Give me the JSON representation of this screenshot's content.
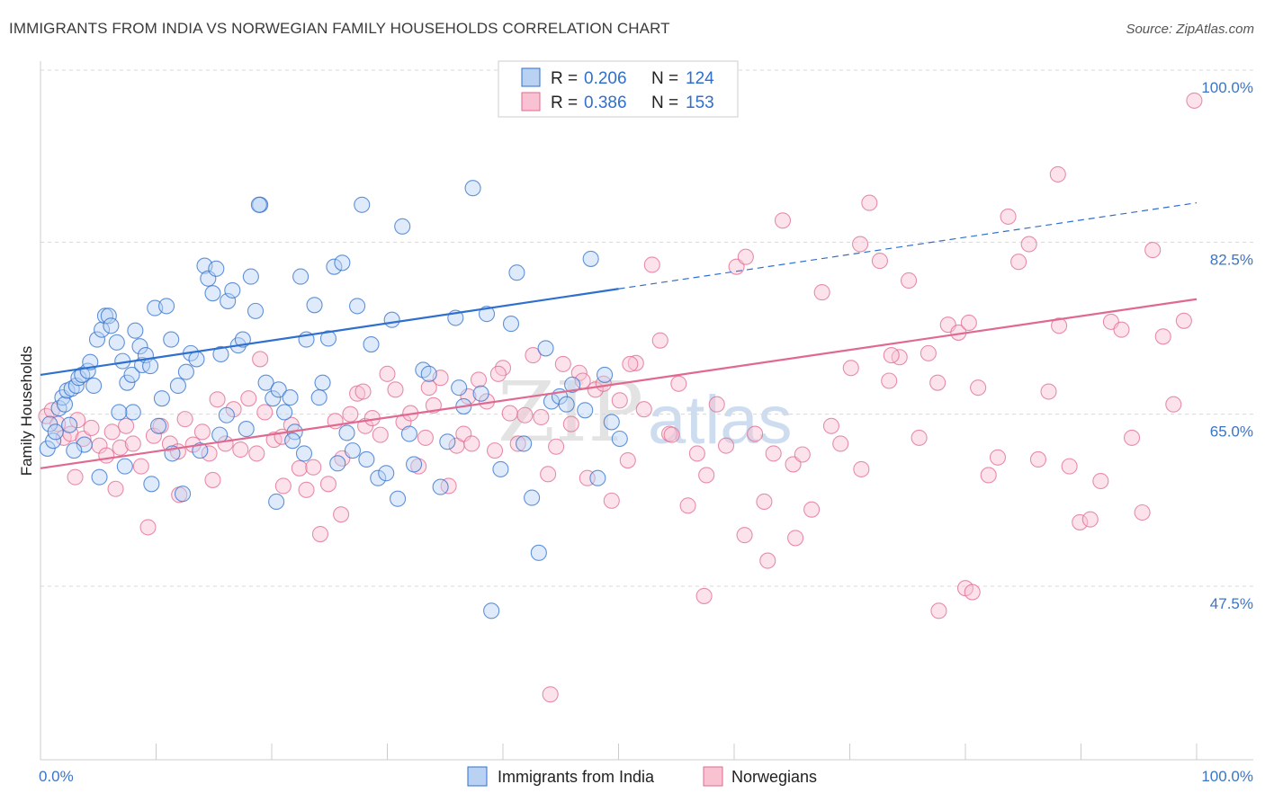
{
  "title": "IMMIGRANTS FROM INDIA VS NORWEGIAN FAMILY HOUSEHOLDS CORRELATION CHART",
  "source": "Source: ZipAtlas.com",
  "colors": {
    "blue": "#2f6fce",
    "pink": "#e0698f",
    "blue_fill": "#b9d2f4",
    "pink_fill": "#f8c2d2",
    "tick": "#3d74c4",
    "grid": "#d8d8d8"
  },
  "legend": {
    "series1": {
      "r_label": "R = ",
      "r_value": "0.206",
      "n_label": "N = ",
      "n_value": "124"
    },
    "series2": {
      "r_label": "R = ",
      "r_value": "0.386",
      "n_label": "N = ",
      "n_value": "153"
    }
  },
  "bottom_legend": {
    "series1": "Immigrants from India",
    "series2": "Norwegians"
  },
  "watermark": {
    "zip": "ZIP",
    "atlas": "atlas"
  },
  "chart_data": {
    "type": "scatter",
    "title": "IMMIGRANTS FROM INDIA VS NORWEGIAN FAMILY HOUSEHOLDS CORRELATION CHART",
    "xlabel": "",
    "ylabel": "Family Households",
    "xlim": [
      0,
      100
    ],
    "ylim": [
      31.5,
      102
    ],
    "x_tick_labels": {
      "left": "0.0%",
      "right": "100.0%"
    },
    "y_ticks": [
      {
        "value": 100.0,
        "label": "100.0%"
      },
      {
        "value": 82.5,
        "label": "82.5%"
      },
      {
        "value": 65.0,
        "label": "65.0%"
      },
      {
        "value": 47.5,
        "label": "47.5%"
      }
    ],
    "series": [
      {
        "name": "Immigrants from India",
        "color": "#2f6fce",
        "trend": {
          "x1": 0,
          "y1": 69.0,
          "x2": 100,
          "y2": 86.5,
          "solid_until": 50
        },
        "points": [
          [
            0.6,
            61.5
          ],
          [
            0.8,
            64.0
          ],
          [
            1.1,
            62.3
          ],
          [
            1.3,
            63.2
          ],
          [
            1.6,
            65.6
          ],
          [
            1.9,
            66.7
          ],
          [
            2.1,
            66.0
          ],
          [
            2.3,
            67.4
          ],
          [
            2.5,
            63.9
          ],
          [
            2.7,
            67.6
          ],
          [
            3.1,
            67.9
          ],
          [
            3.3,
            68.7
          ],
          [
            3.6,
            69.0
          ],
          [
            4.1,
            69.4
          ],
          [
            4.3,
            70.3
          ],
          [
            4.6,
            67.9
          ],
          [
            4.9,
            72.6
          ],
          [
            5.3,
            73.6
          ],
          [
            5.6,
            75.0
          ],
          [
            5.9,
            75.0
          ],
          [
            6.1,
            74.0
          ],
          [
            6.6,
            72.3
          ],
          [
            7.1,
            70.4
          ],
          [
            7.5,
            68.2
          ],
          [
            7.9,
            69.0
          ],
          [
            8.2,
            73.5
          ],
          [
            8.6,
            71.9
          ],
          [
            8.8,
            70.0
          ],
          [
            9.1,
            71.0
          ],
          [
            9.5,
            69.9
          ],
          [
            9.9,
            75.8
          ],
          [
            10.5,
            66.6
          ],
          [
            10.9,
            76.0
          ],
          [
            11.3,
            72.6
          ],
          [
            11.9,
            67.9
          ],
          [
            12.6,
            69.3
          ],
          [
            13.0,
            71.2
          ],
          [
            13.5,
            70.6
          ],
          [
            14.2,
            80.1
          ],
          [
            14.5,
            78.8
          ],
          [
            14.9,
            77.3
          ],
          [
            15.2,
            79.8
          ],
          [
            15.6,
            71.1
          ],
          [
            16.2,
            76.5
          ],
          [
            16.6,
            77.6
          ],
          [
            17.1,
            72.0
          ],
          [
            17.5,
            72.6
          ],
          [
            18.2,
            79.0
          ],
          [
            18.6,
            75.5
          ],
          [
            19.0,
            86.3
          ],
          [
            19.5,
            68.2
          ],
          [
            20.1,
            66.6
          ],
          [
            20.6,
            67.5
          ],
          [
            21.1,
            65.2
          ],
          [
            21.6,
            66.7
          ],
          [
            22.0,
            63.2
          ],
          [
            22.5,
            79.0
          ],
          [
            23.0,
            72.6
          ],
          [
            23.7,
            76.1
          ],
          [
            24.4,
            68.2
          ],
          [
            24.9,
            72.7
          ],
          [
            25.4,
            80.0
          ],
          [
            26.1,
            80.4
          ],
          [
            26.5,
            63.1
          ],
          [
            27.0,
            61.3
          ],
          [
            27.4,
            76.0
          ],
          [
            27.8,
            86.3
          ],
          [
            28.6,
            72.1
          ],
          [
            29.2,
            58.5
          ],
          [
            29.9,
            59.0
          ],
          [
            30.4,
            74.6
          ],
          [
            31.3,
            84.1
          ],
          [
            31.9,
            63.0
          ],
          [
            32.3,
            59.9
          ],
          [
            33.1,
            69.5
          ],
          [
            33.6,
            69.1
          ],
          [
            34.6,
            57.6
          ],
          [
            35.2,
            62.2
          ],
          [
            35.9,
            74.8
          ],
          [
            36.2,
            67.7
          ],
          [
            36.6,
            65.8
          ],
          [
            37.4,
            88.0
          ],
          [
            38.1,
            67.1
          ],
          [
            38.6,
            75.2
          ],
          [
            39.0,
            45.0
          ],
          [
            39.8,
            59.4
          ],
          [
            40.7,
            74.2
          ],
          [
            41.2,
            79.4
          ],
          [
            41.8,
            62.0
          ],
          [
            42.5,
            56.5
          ],
          [
            43.1,
            50.9
          ],
          [
            43.7,
            71.7
          ],
          [
            44.2,
            66.3
          ],
          [
            44.9,
            66.8
          ],
          [
            45.5,
            66.0
          ],
          [
            46.0,
            68.0
          ],
          [
            47.1,
            65.4
          ],
          [
            47.6,
            80.8
          ],
          [
            48.2,
            58.5
          ],
          [
            48.8,
            69.0
          ],
          [
            49.4,
            64.2
          ],
          [
            50.1,
            62.5
          ],
          [
            18.9,
            86.3
          ],
          [
            17.8,
            63.5
          ],
          [
            21.8,
            62.3
          ],
          [
            16.1,
            64.9
          ],
          [
            15.5,
            62.9
          ],
          [
            12.3,
            56.9
          ],
          [
            10.2,
            63.8
          ],
          [
            8.0,
            65.2
          ],
          [
            6.8,
            65.2
          ],
          [
            3.8,
            61.9
          ],
          [
            2.9,
            61.3
          ],
          [
            5.1,
            58.6
          ],
          [
            7.3,
            59.7
          ],
          [
            9.6,
            57.9
          ],
          [
            11.4,
            61.0
          ],
          [
            13.8,
            61.3
          ],
          [
            20.4,
            56.1
          ],
          [
            22.8,
            61.0
          ],
          [
            24.1,
            66.7
          ],
          [
            25.7,
            60.0
          ],
          [
            28.2,
            60.4
          ],
          [
            30.9,
            56.4
          ]
        ]
      },
      {
        "name": "Norwegians",
        "color": "#e0698f",
        "trend": {
          "x1": 0,
          "y1": 59.5,
          "x2": 100,
          "y2": 76.7,
          "solid_until": 100
        },
        "points": [
          [
            0.5,
            64.8
          ],
          [
            1.0,
            65.4
          ],
          [
            1.5,
            64.0
          ],
          [
            2.0,
            62.6
          ],
          [
            2.6,
            63.0
          ],
          [
            3.2,
            64.4
          ],
          [
            3.7,
            62.5
          ],
          [
            4.4,
            63.6
          ],
          [
            5.1,
            61.8
          ],
          [
            5.7,
            60.8
          ],
          [
            6.2,
            63.2
          ],
          [
            6.9,
            61.6
          ],
          [
            7.4,
            63.8
          ],
          [
            8.0,
            62.0
          ],
          [
            8.7,
            59.7
          ],
          [
            9.3,
            53.5
          ],
          [
            9.8,
            62.8
          ],
          [
            10.4,
            63.8
          ],
          [
            11.2,
            62.0
          ],
          [
            11.9,
            61.2
          ],
          [
            12.5,
            64.5
          ],
          [
            13.2,
            61.9
          ],
          [
            14.0,
            63.2
          ],
          [
            14.6,
            61.0
          ],
          [
            15.3,
            66.5
          ],
          [
            16.0,
            62.0
          ],
          [
            16.7,
            65.5
          ],
          [
            17.3,
            61.4
          ],
          [
            18.0,
            66.6
          ],
          [
            18.7,
            61.0
          ],
          [
            19.4,
            65.2
          ],
          [
            20.2,
            62.4
          ],
          [
            20.9,
            62.7
          ],
          [
            21.7,
            63.9
          ],
          [
            22.4,
            59.5
          ],
          [
            23.0,
            57.3
          ],
          [
            23.6,
            59.6
          ],
          [
            24.2,
            52.8
          ],
          [
            24.9,
            57.9
          ],
          [
            25.5,
            64.3
          ],
          [
            26.1,
            60.5
          ],
          [
            26.8,
            65.0
          ],
          [
            27.4,
            67.1
          ],
          [
            28.1,
            63.8
          ],
          [
            28.7,
            64.6
          ],
          [
            29.4,
            62.9
          ],
          [
            30.0,
            69.1
          ],
          [
            30.7,
            67.5
          ],
          [
            31.4,
            64.2
          ],
          [
            32.0,
            65.1
          ],
          [
            32.7,
            59.7
          ],
          [
            33.3,
            62.6
          ],
          [
            34.0,
            65.9
          ],
          [
            34.6,
            68.7
          ],
          [
            35.3,
            57.7
          ],
          [
            36.0,
            61.8
          ],
          [
            36.6,
            63.0
          ],
          [
            37.3,
            62.0
          ],
          [
            37.9,
            68.5
          ],
          [
            38.6,
            66.3
          ],
          [
            39.3,
            61.3
          ],
          [
            40.0,
            69.7
          ],
          [
            40.6,
            65.1
          ],
          [
            41.3,
            62.0
          ],
          [
            41.9,
            64.9
          ],
          [
            42.6,
            71.0
          ],
          [
            43.3,
            64.7
          ],
          [
            43.9,
            58.9
          ],
          [
            44.6,
            61.7
          ],
          [
            45.2,
            70.1
          ],
          [
            45.9,
            64.0
          ],
          [
            46.6,
            69.2
          ],
          [
            47.3,
            58.5
          ],
          [
            48.0,
            67.5
          ],
          [
            48.7,
            68.1
          ],
          [
            49.4,
            56.2
          ],
          [
            50.1,
            66.4
          ],
          [
            50.8,
            60.3
          ],
          [
            51.5,
            70.2
          ],
          [
            52.2,
            65.5
          ],
          [
            52.9,
            80.2
          ],
          [
            53.6,
            72.5
          ],
          [
            54.4,
            63.0
          ],
          [
            55.2,
            68.1
          ],
          [
            56.0,
            55.7
          ],
          [
            56.8,
            61.0
          ],
          [
            57.6,
            58.8
          ],
          [
            58.5,
            66.0
          ],
          [
            59.3,
            61.8
          ],
          [
            60.2,
            80.0
          ],
          [
            61.0,
            81.0
          ],
          [
            61.8,
            63.0
          ],
          [
            62.6,
            56.1
          ],
          [
            63.4,
            61.0
          ],
          [
            64.2,
            84.7
          ],
          [
            65.1,
            59.9
          ],
          [
            65.9,
            60.9
          ],
          [
            66.7,
            55.3
          ],
          [
            67.6,
            77.4
          ],
          [
            68.4,
            63.8
          ],
          [
            69.2,
            62.0
          ],
          [
            70.1,
            69.7
          ],
          [
            70.9,
            82.3
          ],
          [
            71.7,
            86.5
          ],
          [
            72.6,
            80.6
          ],
          [
            73.4,
            68.4
          ],
          [
            74.3,
            70.8
          ],
          [
            75.1,
            78.6
          ],
          [
            76.0,
            62.6
          ],
          [
            76.8,
            71.2
          ],
          [
            77.7,
            45.0
          ],
          [
            78.5,
            74.1
          ],
          [
            79.4,
            73.3
          ],
          [
            80.3,
            74.3
          ],
          [
            81.1,
            67.7
          ],
          [
            82.0,
            58.8
          ],
          [
            82.8,
            60.6
          ],
          [
            83.7,
            85.1
          ],
          [
            84.6,
            80.5
          ],
          [
            85.5,
            82.3
          ],
          [
            86.3,
            60.4
          ],
          [
            87.2,
            67.3
          ],
          [
            88.1,
            74.0
          ],
          [
            89.0,
            59.7
          ],
          [
            89.9,
            54.0
          ],
          [
            90.8,
            54.3
          ],
          [
            91.7,
            58.2
          ],
          [
            92.6,
            74.4
          ],
          [
            93.5,
            73.6
          ],
          [
            94.4,
            62.6
          ],
          [
            95.3,
            55.0
          ],
          [
            96.2,
            81.7
          ],
          [
            97.1,
            72.9
          ],
          [
            98.0,
            66.0
          ],
          [
            98.9,
            74.5
          ],
          [
            99.8,
            96.9
          ],
          [
            57.4,
            46.5
          ],
          [
            44.1,
            36.5
          ],
          [
            77.6,
            68.2
          ],
          [
            80.0,
            47.3
          ],
          [
            80.6,
            46.9
          ],
          [
            71.0,
            59.4
          ],
          [
            65.3,
            52.4
          ],
          [
            62.9,
            50.1
          ],
          [
            60.9,
            52.7
          ],
          [
            54.6,
            62.9
          ],
          [
            51.0,
            70.1
          ],
          [
            46.9,
            68.4
          ],
          [
            39.6,
            69.1
          ],
          [
            37.0,
            66.8
          ],
          [
            33.6,
            67.7
          ],
          [
            27.9,
            67.3
          ],
          [
            26.0,
            54.8
          ],
          [
            21.0,
            57.7
          ],
          [
            14.9,
            58.3
          ],
          [
            12.0,
            56.8
          ],
          [
            6.5,
            57.4
          ],
          [
            3.0,
            58.6
          ],
          [
            88.0,
            89.4
          ],
          [
            73.6,
            71.0
          ],
          [
            19.0,
            70.6
          ]
        ]
      }
    ]
  }
}
